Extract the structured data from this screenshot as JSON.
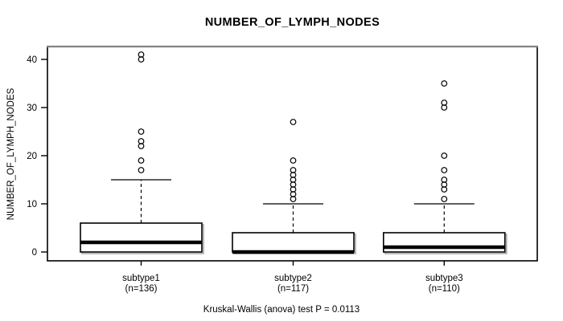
{
  "chart_data": {
    "type": "boxplot",
    "title": "NUMBER_OF_LYMPH_NODES",
    "ylabel": "NUMBER_OF_LYMPH_NODES",
    "xlabel": "",
    "caption": "Kruskal-Wallis (anova) test P = 0.0113",
    "y_ticks": [
      0,
      10,
      20,
      30,
      40
    ],
    "ylim": [
      0,
      41
    ],
    "grid": false,
    "legend": "none",
    "groups": [
      {
        "label": "subtype1",
        "n_label": "(n=136)",
        "n": 136,
        "q1": 0,
        "median": 2,
        "q3": 6,
        "whisker_low": 0,
        "whisker_high": 15,
        "outliers": [
          17,
          19,
          22,
          23,
          25,
          40,
          41
        ]
      },
      {
        "label": "subtype2",
        "n_label": "(n=117)",
        "n": 117,
        "q1": 0,
        "median": 0,
        "q3": 4,
        "whisker_low": 0,
        "whisker_high": 10,
        "outliers": [
          11,
          12,
          13,
          14,
          15,
          16,
          17,
          19,
          27
        ]
      },
      {
        "label": "subtype3",
        "n_label": "(n=110)",
        "n": 110,
        "q1": 0,
        "median": 1,
        "q3": 4,
        "whisker_low": 0,
        "whisker_high": 10,
        "outliers": [
          11,
          13,
          14,
          15,
          17,
          20,
          30,
          31,
          35
        ]
      }
    ],
    "colors": {
      "line": "#000000",
      "frame_top": "#828282",
      "box_fill": "#ffffff",
      "box_shadow": "#9c9c9c",
      "background": "#ffffff"
    }
  }
}
